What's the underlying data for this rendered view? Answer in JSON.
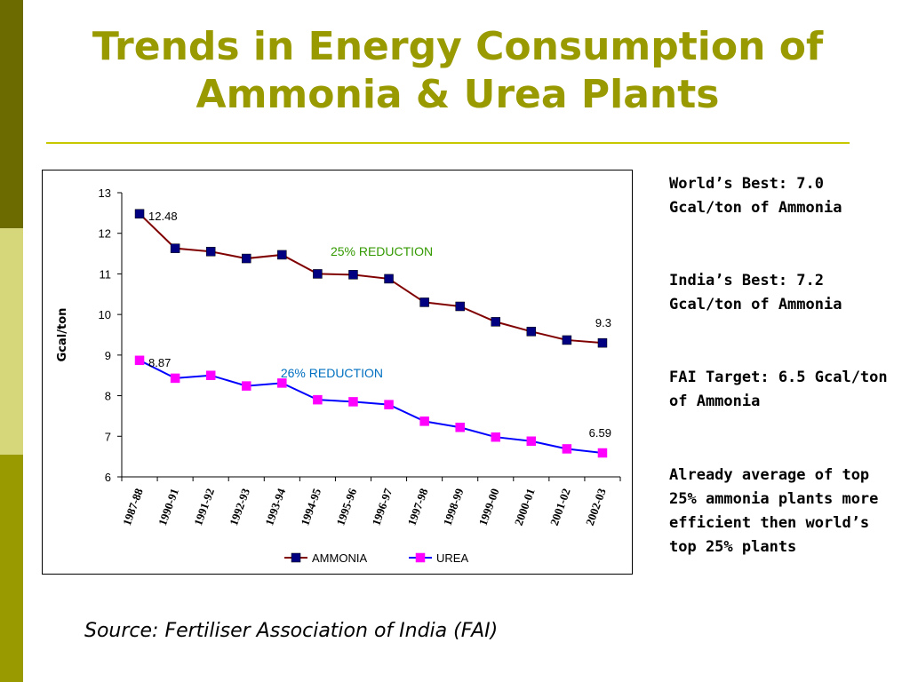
{
  "slide": {
    "title": "Trends in Energy Consumption of Ammonia & Urea Plants",
    "notes": [
      "World’s Best: 7.0 Gcal/ton of Ammonia",
      "India’s Best: 7.2 Gcal/ton of Ammonia",
      "FAI Target:  6.5 Gcal/ton of Ammonia",
      "Already average of top 25% ammonia plants more efficient then world’s top 25% plants"
    ],
    "source": "Source: Fertiliser Association of India (FAI)"
  },
  "chart_data": {
    "type": "line",
    "categories": [
      "1987-88",
      "1990-91",
      "1991-92",
      "1992-93",
      "1993-94",
      "1994-95",
      "1995-96",
      "1996-97",
      "1997-98",
      "1998-99",
      "1999-00",
      "2000-01",
      "2001-02",
      "2002-03"
    ],
    "series": [
      {
        "name": "AMMONIA",
        "color": "#800000",
        "marker_color": "#000080",
        "values": [
          12.48,
          11.63,
          11.55,
          11.38,
          11.47,
          11.0,
          10.98,
          10.88,
          10.3,
          10.2,
          9.82,
          9.58,
          9.37,
          9.3
        ]
      },
      {
        "name": "UREA",
        "color": "#0000ff",
        "marker_color": "#ff00ff",
        "values": [
          8.87,
          8.43,
          8.5,
          8.24,
          8.31,
          7.9,
          7.85,
          7.78,
          7.37,
          7.22,
          6.98,
          6.88,
          6.69,
          6.59
        ]
      }
    ],
    "title": "",
    "xlabel": "",
    "ylabel": "Gcal/ton",
    "ylim": [
      6,
      13
    ],
    "yticks": [
      6,
      7,
      8,
      9,
      10,
      11,
      12,
      13
    ],
    "grid": false,
    "legend": "bottom",
    "data_labels": [
      {
        "series": 0,
        "index": 0,
        "text": "12.48"
      },
      {
        "series": 0,
        "index": 13,
        "text": "9.3"
      },
      {
        "series": 1,
        "index": 0,
        "text": "8.87"
      },
      {
        "series": 1,
        "index": 13,
        "text": "6.59"
      }
    ],
    "annotations": [
      {
        "text": "25% REDUCTION",
        "color": "#339900",
        "x_index": 7.3,
        "y": 11.45
      },
      {
        "text": "26% REDUCTION",
        "color": "#0070c0",
        "x_index": 5.9,
        "y": 8.45
      }
    ]
  }
}
